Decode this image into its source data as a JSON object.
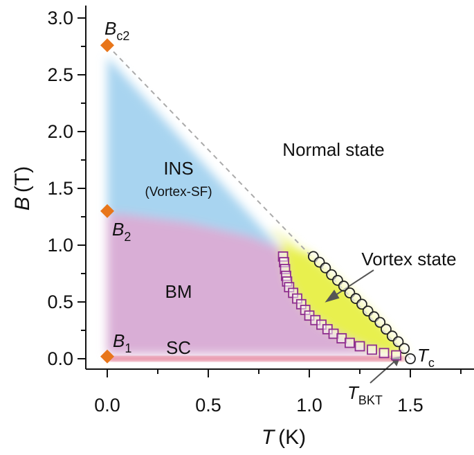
{
  "chart_data": {
    "type": "scatter",
    "title": "",
    "xlabel": {
      "var": "T",
      "unit": "(K)"
    },
    "ylabel": {
      "var": "B",
      "unit": "(T)"
    },
    "xlim": [
      -0.05,
      1.85
    ],
    "ylim": [
      -0.1,
      3.05
    ],
    "x_ticks": [
      0.0,
      0.5,
      1.0,
      1.5
    ],
    "x_tick_labels": [
      "0.0",
      "0.5",
      "1.0",
      "1.5"
    ],
    "y_ticks": [
      0.0,
      0.5,
      1.0,
      1.5,
      2.0,
      2.5,
      3.0
    ],
    "y_tick_labels": [
      "0.0",
      "0.5",
      "1.0",
      "1.5",
      "2.0",
      "2.5",
      "3.0"
    ],
    "grid": false,
    "regions": [
      {
        "label": "INS",
        "sublabel": "(Vortex-SF)",
        "color": "#a8d4f0"
      },
      {
        "label": "BM",
        "color": "#d9aed6"
      },
      {
        "label": "SC",
        "color": "#e0607e"
      },
      {
        "label": "Vortex state",
        "color": "#e6ee3a"
      },
      {
        "label": "Normal state",
        "color": "#ffffff"
      }
    ],
    "series": [
      {
        "marker": "circle",
        "color": "#222222",
        "x": [
          1.02,
          1.05,
          1.08,
          1.11,
          1.14,
          1.17,
          1.2,
          1.23,
          1.26,
          1.29,
          1.32,
          1.35,
          1.38,
          1.41,
          1.44,
          1.47,
          1.5
        ],
        "y": [
          0.9,
          0.85,
          0.8,
          0.74,
          0.69,
          0.64,
          0.58,
          0.53,
          0.48,
          0.42,
          0.37,
          0.32,
          0.26,
          0.2,
          0.15,
          0.09,
          0.0
        ]
      },
      {
        "marker": "square",
        "color": "#8e2d8e",
        "x": [
          0.87,
          0.875,
          0.88,
          0.885,
          0.89,
          0.9,
          0.92,
          0.94,
          0.96,
          0.98,
          1.0,
          1.03,
          1.06,
          1.09,
          1.12,
          1.16,
          1.2,
          1.25,
          1.31,
          1.37,
          1.43
        ],
        "y": [
          0.9,
          0.85,
          0.79,
          0.73,
          0.68,
          0.63,
          0.58,
          0.53,
          0.48,
          0.43,
          0.38,
          0.34,
          0.3,
          0.26,
          0.22,
          0.18,
          0.14,
          0.11,
          0.08,
          0.05,
          0.03
        ]
      },
      {
        "marker": "diamond",
        "color": "#e8761b",
        "x": [
          0.0,
          0.0,
          0.0
        ],
        "y": [
          2.76,
          1.3,
          0.02
        ]
      }
    ],
    "boundary": {
      "style": "dashed",
      "color": "#aaaaaa",
      "x": [
        0.0,
        1.5
      ],
      "y": [
        2.76,
        0.0
      ]
    },
    "annotations": [
      {
        "main": "B",
        "sub": "c2",
        "point": [
          0.0,
          2.76
        ]
      },
      {
        "main": "B",
        "sub": "2",
        "point": [
          0.0,
          1.3
        ]
      },
      {
        "main": "B",
        "sub": "1",
        "point": [
          0.0,
          0.02
        ]
      },
      {
        "main": "T",
        "sub": "c",
        "point": [
          1.5,
          0.0
        ]
      },
      {
        "main": "T",
        "sub": "BKT",
        "point": [
          1.44,
          0.0
        ]
      }
    ]
  }
}
